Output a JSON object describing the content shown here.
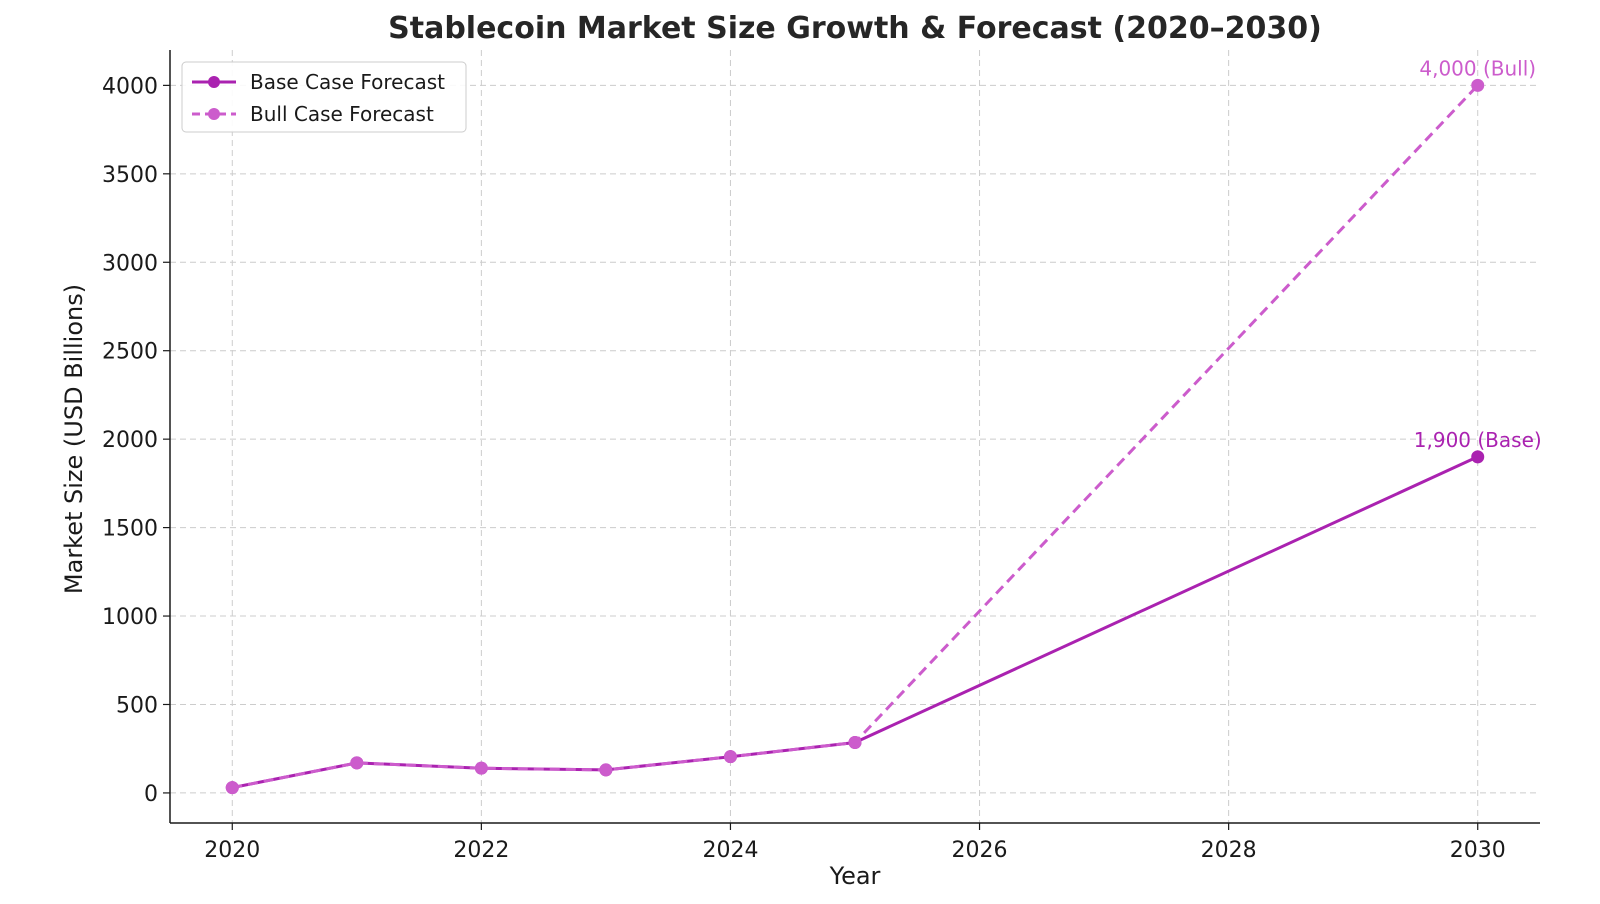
{
  "chart_data": {
    "type": "line",
    "title": "Stablecoin Market Size Growth & Forecast (2020–2030)",
    "xlabel": "Year",
    "ylabel": "Market Size (USD Billions)",
    "xlim": [
      2019.5,
      2030.5
    ],
    "ylim": [
      -170,
      4200
    ],
    "x_ticks": [
      2020,
      2022,
      2024,
      2026,
      2028,
      2030
    ],
    "y_ticks": [
      0,
      500,
      1000,
      1500,
      2000,
      2500,
      3000,
      3500,
      4000
    ],
    "grid": true,
    "legend_position": "top-left",
    "series": [
      {
        "name": "Base Case Forecast",
        "color": "#aa22b0",
        "line_style": "solid",
        "x": [
          2020,
          2021,
          2022,
          2023,
          2024,
          2025,
          2030
        ],
        "y": [
          30,
          170,
          140,
          130,
          205,
          285,
          1900
        ]
      },
      {
        "name": "Bull Case Forecast",
        "color": "#cc5ccc",
        "line_style": "dashed",
        "x": [
          2020,
          2021,
          2022,
          2023,
          2024,
          2025,
          2030
        ],
        "y": [
          30,
          170,
          140,
          130,
          205,
          285,
          4000
        ]
      }
    ],
    "annotations": [
      {
        "text": "4,000 (Bull)",
        "x": 2030,
        "y": 4000,
        "color": "#cc5ccc"
      },
      {
        "text": "1,900 (Base)",
        "x": 2030,
        "y": 1900,
        "color": "#aa22b0"
      }
    ]
  }
}
